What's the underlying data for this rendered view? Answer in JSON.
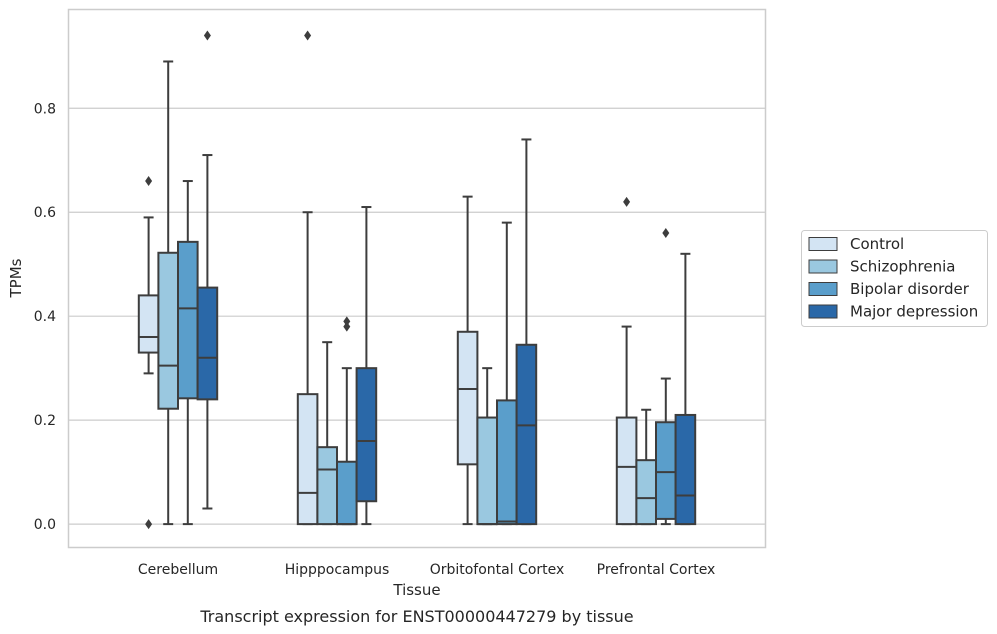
{
  "chart_data": {
    "type": "box",
    "title": "",
    "caption": "Transcript expression for ENST00000447279 by tissue",
    "xlabel": "Tissue",
    "ylabel": "TPMs",
    "ylim": [
      -0.045,
      0.99
    ],
    "yticks": [
      0.0,
      0.2,
      0.4,
      0.6,
      0.8
    ],
    "ytick_labels": [
      "0.0",
      "0.2",
      "0.4",
      "0.6",
      "0.8"
    ],
    "grid": "horizontal",
    "legend_position": "right",
    "categories": [
      "Cerebellum",
      "Hipppocampus",
      "Orbitofontal Cortex",
      "Prefrontal Cortex"
    ],
    "series": [
      {
        "name": "Control",
        "color": "#d3e4f3",
        "boxes": [
          {
            "whislo": 0.29,
            "q1": 0.33,
            "med": 0.36,
            "q3": 0.44,
            "whishi": 0.59,
            "fliers": [
              0.66,
              0.0
            ]
          },
          {
            "whislo": 0.0,
            "q1": 0.0,
            "med": 0.06,
            "q3": 0.25,
            "whishi": 0.6,
            "fliers": []
          },
          {
            "whislo": 0.0,
            "q1": 0.115,
            "med": 0.26,
            "q3": 0.37,
            "whishi": 0.63,
            "fliers": []
          },
          {
            "whislo": 0.0,
            "q1": 0.0,
            "med": 0.11,
            "q3": 0.205,
            "whishi": 0.38,
            "fliers": [
              0.62
            ]
          }
        ]
      },
      {
        "name": "Schizophrenia",
        "color": "#9ac8e0",
        "boxes": [
          {
            "whislo": 0.0,
            "q1": 0.222,
            "med": 0.305,
            "q3": 0.522,
            "whishi": 0.89,
            "fliers": []
          },
          {
            "whislo": 0.0,
            "q1": 0.0,
            "med": 0.105,
            "q3": 0.148,
            "whishi": 0.35,
            "fliers": []
          },
          {
            "whislo": 0.0,
            "q1": 0.0,
            "med": 0.0,
            "q3": 0.205,
            "whishi": 0.3,
            "fliers": []
          },
          {
            "whislo": 0.0,
            "q1": 0.0,
            "med": 0.05,
            "q3": 0.123,
            "whishi": 0.22,
            "fliers": []
          }
        ]
      },
      {
        "name": "Bipolar disorder",
        "color": "#5a9ecb",
        "boxes": [
          {
            "whislo": 0.0,
            "q1": 0.242,
            "med": 0.415,
            "q3": 0.543,
            "whishi": 0.66,
            "fliers": []
          },
          {
            "whislo": 0.0,
            "q1": 0.0,
            "med": 0.0,
            "q3": 0.12,
            "whishi": 0.3,
            "fliers": [
              0.38,
              0.39
            ]
          },
          {
            "whislo": 0.0,
            "q1": 0.0,
            "med": 0.005,
            "q3": 0.238,
            "whishi": 0.58,
            "fliers": []
          },
          {
            "whislo": 0.0,
            "q1": 0.01,
            "med": 0.1,
            "q3": 0.196,
            "whishi": 0.28,
            "fliers": [
              0.56
            ]
          }
        ]
      },
      {
        "name": "Major depression",
        "color": "#2a68a8",
        "boxes": [
          {
            "whislo": 0.03,
            "q1": 0.24,
            "med": 0.32,
            "q3": 0.455,
            "whishi": 0.71,
            "fliers": [
              0.94
            ]
          },
          {
            "whislo": 0.0,
            "q1": 0.044,
            "med": 0.16,
            "q3": 0.3,
            "whishi": 0.61,
            "fliers": []
          },
          {
            "whislo": 0.0,
            "q1": 0.0,
            "med": 0.19,
            "q3": 0.345,
            "whishi": 0.74,
            "fliers": []
          },
          {
            "whislo": 0.0,
            "q1": 0.0,
            "med": 0.055,
            "q3": 0.21,
            "whishi": 0.52,
            "fliers": []
          }
        ]
      }
    ],
    "extra_fliers": [
      {
        "category": "Hipppocampus",
        "series": "Control",
        "value": 0.94
      }
    ]
  }
}
